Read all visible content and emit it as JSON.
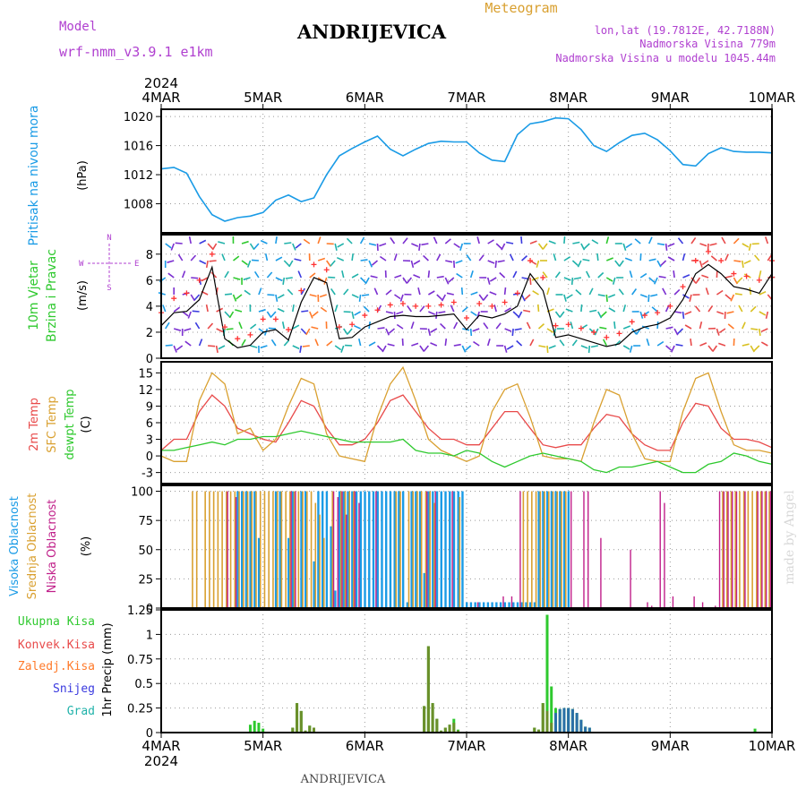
{
  "header": {
    "model_label": "Model",
    "model_name": "wrf-nmm_v3.9.1  e1km",
    "station": "ANDRIJEVICA",
    "meteogram": "Meteogram",
    "lonlat": "lon,lat (19.7812E, 42.7188N)",
    "altitude": "Nadmorska Visina 779m",
    "model_altitude": "Nadmorska Visina u modelu 1045.44m",
    "footer_station": "ANDRIJEVICA",
    "watermark": "made by Angel"
  },
  "time_axis": {
    "year": "2024",
    "ticks": [
      "4MAR",
      "5MAR",
      "6MAR",
      "7MAR",
      "8MAR",
      "9MAR",
      "10MAR"
    ]
  },
  "colors": {
    "pressure": "#1a9be6",
    "temp_2m": "#e84a4a",
    "temp_sfc": "#d9a030",
    "dewpoint": "#2ec92e",
    "cloud_high": "#1a9be6",
    "cloud_mid": "#d9a030",
    "cloud_low": "#c0208a",
    "precip_total": "#2ec92e",
    "precip_conv": "#e84a4a",
    "precip_frozen": "#ff7a2a",
    "precip_snow": "#3a3adf",
    "precip_grad": "#20b2aa",
    "wind_speed": "#000000",
    "wind_gust": "#ff3333",
    "compass": "#b040d0"
  },
  "chart_data": [
    {
      "type": "line",
      "title": "Pritisak na nivou mora",
      "ylabel": "(hPa)",
      "ylim": [
        1004,
        1021
      ],
      "yticks": [
        "1020",
        "1016",
        "1012",
        "1008"
      ],
      "grid": true,
      "x": [
        0,
        3,
        6,
        9,
        12,
        15,
        18,
        21,
        24,
        27,
        30,
        33,
        36,
        39,
        42,
        45,
        48,
        51,
        54,
        57,
        60,
        63,
        66,
        69,
        72,
        75,
        78,
        81,
        84,
        87,
        90,
        93,
        96,
        99,
        102,
        105,
        108,
        111,
        114,
        117,
        120,
        123,
        126,
        129,
        132,
        135,
        138,
        141,
        144
      ],
      "series": [
        {
          "name": "Pritisak na nivou mora",
          "values": [
            1012.8,
            1013,
            1012.2,
            1009,
            1006.5,
            1005.6,
            1006.1,
            1006.3,
            1006.8,
            1008.5,
            1009.2,
            1008.3,
            1008.8,
            1012,
            1014.6,
            1015.6,
            1016.5,
            1017.3,
            1015.5,
            1014.6,
            1015.5,
            1016.3,
            1016.6,
            1016.5,
            1016.5,
            1015,
            1014,
            1013.8,
            1017.5,
            1019,
            1019.3,
            1019.8,
            1019.7,
            1018.2,
            1016,
            1015.2,
            1016.4,
            1017.4,
            1017.7,
            1016.8,
            1015.3,
            1013.4,
            1013.2,
            1014.9,
            1015.7,
            1015.2,
            1015.1,
            1015.1,
            1015
          ]
        }
      ]
    },
    {
      "type": "line",
      "title": "10m Vjetar Brzina i Pravac",
      "ylabel": "(m/s)",
      "ylim": [
        0,
        9.5
      ],
      "yticks": [
        "8",
        "6",
        "4",
        "2",
        "0"
      ],
      "compass": {
        "n": "N",
        "s": "S",
        "e": "E",
        "w": "W"
      },
      "x": [
        0,
        3,
        6,
        9,
        12,
        15,
        18,
        21,
        24,
        27,
        30,
        33,
        36,
        39,
        42,
        45,
        48,
        51,
        54,
        57,
        60,
        63,
        66,
        69,
        72,
        75,
        78,
        81,
        84,
        87,
        90,
        93,
        96,
        99,
        102,
        105,
        108,
        111,
        114,
        117,
        120,
        123,
        126,
        129,
        132,
        135,
        138,
        141,
        144
      ],
      "series": [
        {
          "name": "speed",
          "values": [
            2.5,
            3.5,
            3.6,
            4.5,
            7,
            1.5,
            0.8,
            1,
            2,
            2.2,
            1.4,
            4.3,
            6.2,
            5.8,
            1.5,
            1.6,
            2.4,
            2.8,
            3.2,
            3.3,
            3.2,
            3.2,
            3.3,
            3.4,
            2.2,
            3.3,
            3.1,
            3.4,
            4,
            6.5,
            5.2,
            1.6,
            1.8,
            1.5,
            1.2,
            0.9,
            1.1,
            2,
            2.4,
            2.6,
            3.1,
            4.5,
            6.5,
            7.2,
            6.5,
            5.5,
            5.3,
            5,
            6.5
          ]
        },
        {
          "name": "gust",
          "values": [
            3.5,
            4.6,
            5,
            6,
            8,
            2.4,
            1.5,
            1.8,
            3,
            3,
            2.2,
            5.2,
            7.2,
            6.8,
            2.4,
            2.6,
            3.3,
            3.7,
            4.1,
            4.2,
            4,
            4,
            4.1,
            4.3,
            3.1,
            4.2,
            4,
            4.3,
            5,
            7.5,
            6.2,
            2.5,
            2.6,
            2.3,
            2,
            1.6,
            1.9,
            2.8,
            3.3,
            3.5,
            4,
            5.5,
            7.5,
            8.2,
            7.5,
            6.5,
            6.3,
            6,
            7.5
          ]
        }
      ]
    },
    {
      "type": "line",
      "title": "2m Temp / SFC Temp / dewpt Temp",
      "ylabel": "(C)",
      "ylim": [
        -5,
        17
      ],
      "yticks": [
        "15",
        "12",
        "9",
        "6",
        "3",
        "0",
        "-3"
      ],
      "x": [
        0,
        3,
        6,
        9,
        12,
        15,
        18,
        21,
        24,
        27,
        30,
        33,
        36,
        39,
        42,
        45,
        48,
        51,
        54,
        57,
        60,
        63,
        66,
        69,
        72,
        75,
        78,
        81,
        84,
        87,
        90,
        93,
        96,
        99,
        102,
        105,
        108,
        111,
        114,
        117,
        120,
        123,
        126,
        129,
        132,
        135,
        138,
        141,
        144
      ],
      "series": [
        {
          "name": "2m Temp",
          "values": [
            1,
            3,
            3,
            8,
            11,
            9,
            5,
            4,
            3,
            2.5,
            6,
            10,
            9,
            5,
            2,
            2,
            3,
            6,
            10,
            11,
            8,
            5,
            3,
            3,
            2,
            2,
            5,
            8,
            8,
            5,
            2,
            1.5,
            2,
            2,
            5,
            7.5,
            7,
            4,
            2,
            1,
            1,
            6,
            9.5,
            9,
            5,
            3,
            3,
            2.5,
            1.5
          ]
        },
        {
          "name": "SFC Temp",
          "values": [
            0,
            -1,
            -1,
            10,
            15,
            13,
            4,
            5,
            1,
            3,
            9,
            14,
            13,
            4,
            0,
            -0.5,
            -1,
            7,
            13,
            16,
            10,
            3,
            1,
            0,
            -1,
            0,
            8,
            12,
            13,
            7,
            0,
            -0.5,
            -0.5,
            -1,
            6,
            12,
            11,
            4,
            -0.5,
            -1,
            -1,
            8,
            14,
            15,
            8,
            2,
            1,
            1,
            0.5
          ]
        },
        {
          "name": "dewpt Temp",
          "values": [
            1,
            1,
            1.5,
            2,
            2.5,
            2,
            3,
            3,
            3.5,
            3.5,
            4,
            4.5,
            4,
            3.5,
            3,
            2.5,
            2.5,
            2.5,
            2.5,
            3,
            1,
            0.5,
            0.5,
            0,
            1,
            0.5,
            -1,
            -2,
            -1,
            0,
            0.5,
            0,
            -0.5,
            -1,
            -2.5,
            -3,
            -2,
            -2,
            -1.5,
            -1,
            -2,
            -3,
            -3,
            -1.5,
            -1,
            0.5,
            0,
            -1,
            -1.5
          ]
        }
      ]
    },
    {
      "type": "bar",
      "title": "Visoka Oblacnost / Srednja Oblacnost / Niska Oblacnost",
      "ylabel": "(%)",
      "ylim": [
        0,
        105
      ],
      "yticks": [
        "100",
        "75",
        "50",
        "25",
        "0"
      ],
      "high_hours": [
        18,
        19,
        20,
        21,
        22,
        23,
        27,
        28,
        30,
        31,
        33,
        34,
        36,
        37,
        38,
        39,
        40,
        41,
        42,
        43,
        44,
        45,
        46,
        47,
        48,
        49,
        50,
        51,
        52,
        53,
        54,
        55,
        56,
        57,
        58,
        59,
        60,
        61,
        62,
        63,
        64,
        65,
        66,
        67,
        68,
        69,
        70,
        71,
        72,
        73,
        74,
        75,
        76,
        77,
        78,
        79,
        80,
        81,
        82,
        83,
        84,
        85,
        86,
        87,
        88,
        89,
        90,
        91,
        92,
        93,
        94,
        95,
        96
      ],
      "high_values": [
        100,
        100,
        100,
        100,
        100,
        60,
        100,
        100,
        60,
        100,
        100,
        100,
        40,
        100,
        100,
        100,
        70,
        15,
        100,
        100,
        100,
        100,
        100,
        100,
        100,
        100,
        100,
        100,
        100,
        100,
        100,
        100,
        100,
        100,
        5,
        100,
        100,
        100,
        30,
        100,
        100,
        100,
        100,
        100,
        100,
        100,
        100,
        100,
        5,
        5,
        5,
        5,
        5,
        5,
        5,
        5,
        5,
        5,
        5,
        5,
        5,
        5,
        5,
        5,
        5,
        100,
        100,
        100,
        100,
        100,
        100,
        100,
        100
      ],
      "mid_hours": [
        7,
        8,
        10,
        11,
        12,
        13,
        14,
        15,
        16,
        17,
        18,
        19,
        20,
        21,
        22,
        23,
        24,
        25,
        26,
        27,
        28,
        29,
        30,
        31,
        32,
        33,
        34,
        35,
        36,
        37,
        38,
        40,
        42,
        43,
        44,
        45,
        55,
        56,
        58,
        59,
        60,
        61,
        62,
        63,
        64,
        70,
        85,
        86,
        87,
        88,
        89,
        90,
        91,
        92,
        93,
        94,
        95,
        132,
        133,
        134,
        135,
        136,
        137,
        138,
        139,
        140,
        141,
        142,
        143
      ],
      "mid_values": [
        100,
        100,
        100,
        100,
        100,
        100,
        100,
        100,
        100,
        100,
        100,
        100,
        100,
        100,
        100,
        100,
        100,
        100,
        100,
        100,
        100,
        100,
        100,
        100,
        100,
        100,
        100,
        100,
        90,
        80,
        60,
        100,
        100,
        100,
        100,
        100,
        100,
        100,
        100,
        100,
        100,
        100,
        100,
        100,
        90,
        95,
        100,
        100,
        100,
        100,
        100,
        100,
        100,
        100,
        100,
        100,
        100,
        100,
        100,
        100,
        100,
        100,
        100,
        100,
        100,
        100,
        100,
        100,
        100
      ],
      "low_hours": [
        15,
        17,
        30,
        31,
        40,
        41,
        42,
        43,
        45,
        46,
        50,
        62,
        64,
        68,
        74,
        80,
        82,
        84,
        96,
        99,
        100,
        103,
        110,
        114,
        115,
        117,
        118,
        120,
        125,
        127,
        130,
        131,
        132,
        133,
        134,
        135,
        137,
        140,
        141,
        142,
        143
      ],
      "low_values": [
        100,
        95,
        100,
        100,
        100,
        95,
        100,
        80,
        100,
        90,
        100,
        100,
        100,
        100,
        5,
        10,
        10,
        100,
        100,
        100,
        100,
        60,
        50,
        5,
        2,
        100,
        90,
        10,
        10,
        5,
        2,
        100,
        100,
        100,
        100,
        100,
        100,
        100,
        100,
        100,
        100
      ]
    },
    {
      "type": "bar",
      "title": "1hr Precip",
      "ylabel": "1hr Precip (mm)",
      "ylim": [
        0,
        1.25
      ],
      "yticks": [
        "1.25",
        "1",
        "0.75",
        "0.5",
        "0.25",
        "0"
      ],
      "legend": [
        "Ukupna Kisa",
        "Konvek.Kisa",
        "Zaledj.Kisa",
        "Snijeg",
        "Grad"
      ],
      "hours": [
        21,
        22,
        23,
        24,
        31,
        32,
        33,
        34,
        35,
        36,
        62,
        63,
        64,
        65,
        66,
        67,
        68,
        69,
        70,
        88,
        89,
        90,
        91,
        92,
        93,
        94,
        95,
        96,
        97,
        98,
        99,
        100,
        101,
        140
      ],
      "total": [
        0.08,
        0.12,
        0.1,
        0.04,
        0.05,
        0.3,
        0.22,
        0.02,
        0.07,
        0.05,
        0.27,
        0.88,
        0.3,
        0.14,
        0.02,
        0.05,
        0.08,
        0.14,
        0.03,
        0.05,
        0.03,
        0.3,
        1.2,
        0.47,
        0.25,
        0.24,
        0.25,
        0.25,
        0.24,
        0.2,
        0.13,
        0.06,
        0.05,
        0.04
      ],
      "convective": [
        0,
        0,
        0,
        0,
        0.05,
        0.3,
        0.22,
        0.02,
        0.07,
        0.05,
        0.27,
        0.88,
        0.3,
        0.14,
        0.02,
        0.05,
        0.08,
        0.1,
        0.02,
        0.05,
        0.03,
        0.3,
        0.22,
        0.1,
        0,
        0,
        0,
        0,
        0,
        0,
        0,
        0,
        0,
        0
      ],
      "snow": [
        0,
        0,
        0,
        0,
        0,
        0,
        0,
        0,
        0,
        0,
        0,
        0,
        0,
        0,
        0,
        0,
        0,
        0,
        0,
        0,
        0,
        0,
        0,
        0,
        0.2,
        0.24,
        0.25,
        0.25,
        0.24,
        0.2,
        0.13,
        0.06,
        0.05,
        0
      ]
    }
  ]
}
